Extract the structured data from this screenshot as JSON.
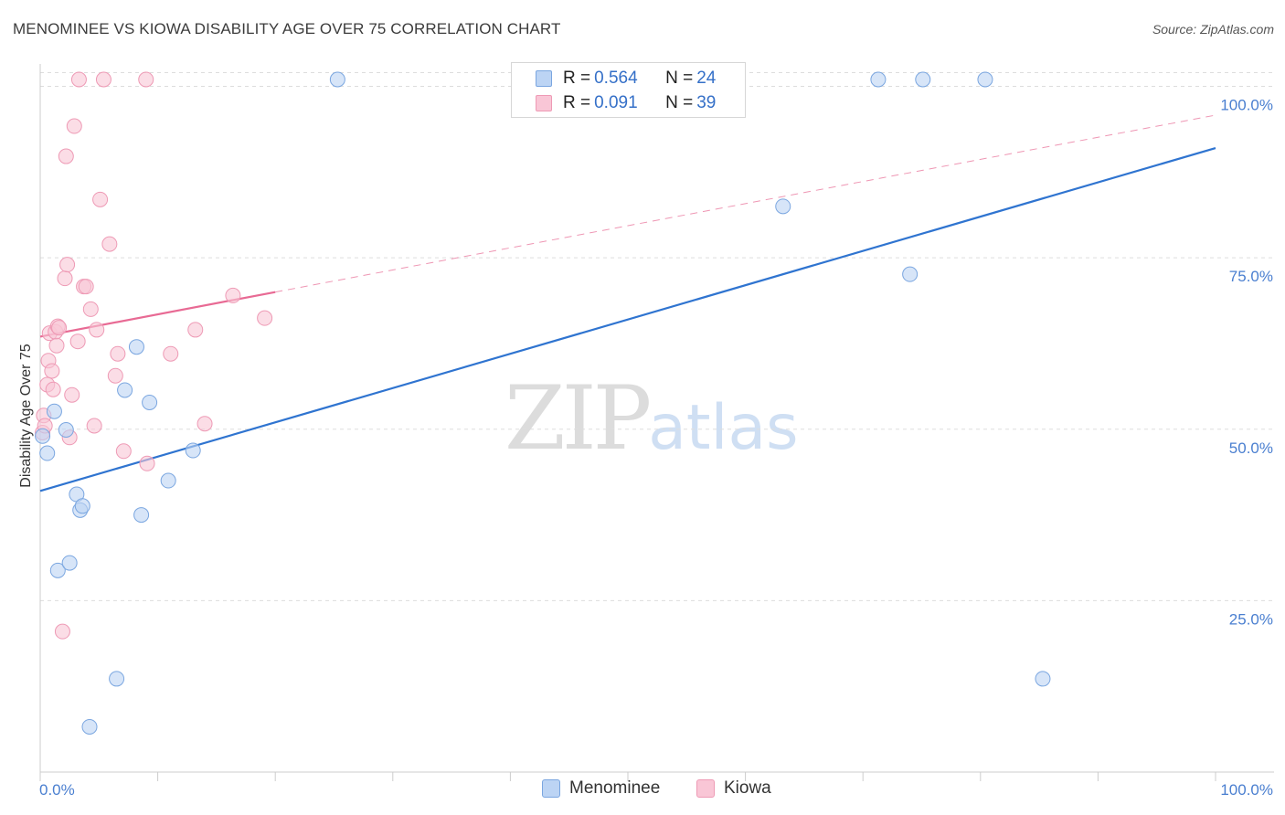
{
  "title": "MENOMINEE VS KIOWA DISABILITY AGE OVER 75 CORRELATION CHART",
  "source": "Source: ZipAtlas.com",
  "watermark": {
    "zip": "ZIP",
    "atlas": "atlas"
  },
  "legend_stats": [
    {
      "r_label": "R = ",
      "r_value": "0.564",
      "n_label": "N = ",
      "n_value": "24"
    },
    {
      "r_label": "R = ",
      "r_value": "0.091",
      "n_label": "N = ",
      "n_value": "39"
    }
  ],
  "bottom_legend": [
    "Menominee",
    "Kiowa"
  ],
  "colors": {
    "menominee_fill": "#bcd4f4",
    "menominee_stroke": "#7aa6e0",
    "menominee_line": "#2f74d0",
    "kiowa_fill": "#f9c6d6",
    "kiowa_stroke": "#ee9ab5",
    "kiowa_line": "#e86a94"
  },
  "chart_data": {
    "type": "scatter",
    "title": "MENOMINEE VS KIOWA DISABILITY AGE OVER 75 CORRELATION CHART",
    "xlabel": "",
    "ylabel": "Disability Age Over 75",
    "xlim": [
      0,
      100
    ],
    "ylim": [
      0,
      102
    ],
    "x_tick_labels": [
      "0.0%",
      "100.0%"
    ],
    "y_ticks": [
      25,
      50,
      75,
      100
    ],
    "y_tick_labels": [
      "25.0%",
      "50.0%",
      "75.0%",
      "100.0%"
    ],
    "series": [
      {
        "name": "Menominee",
        "r": 0.564,
        "n": 24,
        "trend": {
          "x": [
            0,
            100
          ],
          "y": [
            41.0,
            91.0
          ],
          "dashed_extension": false
        },
        "points": [
          {
            "x": 0.2,
            "y": 49.0
          },
          {
            "x": 0.6,
            "y": 46.5
          },
          {
            "x": 1.2,
            "y": 52.6
          },
          {
            "x": 2.2,
            "y": 49.9
          },
          {
            "x": 1.5,
            "y": 29.4
          },
          {
            "x": 2.5,
            "y": 30.5
          },
          {
            "x": 3.1,
            "y": 40.5
          },
          {
            "x": 3.4,
            "y": 38.2
          },
          {
            "x": 3.6,
            "y": 38.8
          },
          {
            "x": 4.2,
            "y": 6.6
          },
          {
            "x": 6.5,
            "y": 13.6
          },
          {
            "x": 7.2,
            "y": 55.7
          },
          {
            "x": 8.2,
            "y": 62.0
          },
          {
            "x": 8.6,
            "y": 37.5
          },
          {
            "x": 9.3,
            "y": 53.9
          },
          {
            "x": 10.9,
            "y": 42.5
          },
          {
            "x": 13.0,
            "y": 46.9
          },
          {
            "x": 25.3,
            "y": 101.0
          },
          {
            "x": 63.2,
            "y": 82.5
          },
          {
            "x": 71.3,
            "y": 101.0
          },
          {
            "x": 74.0,
            "y": 72.6
          },
          {
            "x": 75.1,
            "y": 101.0
          },
          {
            "x": 80.4,
            "y": 101.0
          },
          {
            "x": 85.3,
            "y": 13.6
          }
        ]
      },
      {
        "name": "Kiowa",
        "r": 0.091,
        "n": 39,
        "trend": {
          "x": [
            0,
            20
          ],
          "y": [
            63.5,
            70.0
          ],
          "extended_x": [
            20,
            100
          ],
          "extended_y": [
            70.0,
            95.8
          ],
          "dashed_extension": true
        },
        "points": [
          {
            "x": 0.2,
            "y": 49.5
          },
          {
            "x": 0.3,
            "y": 52.0
          },
          {
            "x": 0.4,
            "y": 50.5
          },
          {
            "x": 0.6,
            "y": 56.5
          },
          {
            "x": 0.7,
            "y": 60.0
          },
          {
            "x": 0.8,
            "y": 64.0
          },
          {
            "x": 1.0,
            "y": 58.5
          },
          {
            "x": 1.1,
            "y": 55.8
          },
          {
            "x": 1.3,
            "y": 64.2
          },
          {
            "x": 1.4,
            "y": 62.2
          },
          {
            "x": 1.5,
            "y": 65.0
          },
          {
            "x": 1.6,
            "y": 64.8
          },
          {
            "x": 1.9,
            "y": 20.5
          },
          {
            "x": 2.1,
            "y": 72.0
          },
          {
            "x": 2.2,
            "y": 89.8
          },
          {
            "x": 2.3,
            "y": 74.0
          },
          {
            "x": 2.5,
            "y": 48.8
          },
          {
            "x": 2.7,
            "y": 55.0
          },
          {
            "x": 2.9,
            "y": 94.2
          },
          {
            "x": 3.2,
            "y": 62.8
          },
          {
            "x": 3.3,
            "y": 101.0
          },
          {
            "x": 3.7,
            "y": 70.8
          },
          {
            "x": 3.9,
            "y": 70.8
          },
          {
            "x": 4.3,
            "y": 67.5
          },
          {
            "x": 4.6,
            "y": 50.5
          },
          {
            "x": 4.8,
            "y": 64.5
          },
          {
            "x": 5.1,
            "y": 83.5
          },
          {
            "x": 5.4,
            "y": 101.0
          },
          {
            "x": 5.9,
            "y": 77.0
          },
          {
            "x": 6.4,
            "y": 57.8
          },
          {
            "x": 6.6,
            "y": 61.0
          },
          {
            "x": 7.1,
            "y": 46.8
          },
          {
            "x": 9.0,
            "y": 101.0
          },
          {
            "x": 9.1,
            "y": 45.0
          },
          {
            "x": 11.1,
            "y": 61.0
          },
          {
            "x": 13.2,
            "y": 64.5
          },
          {
            "x": 14.0,
            "y": 50.8
          },
          {
            "x": 16.4,
            "y": 69.5
          },
          {
            "x": 19.1,
            "y": 66.2
          }
        ]
      }
    ]
  }
}
